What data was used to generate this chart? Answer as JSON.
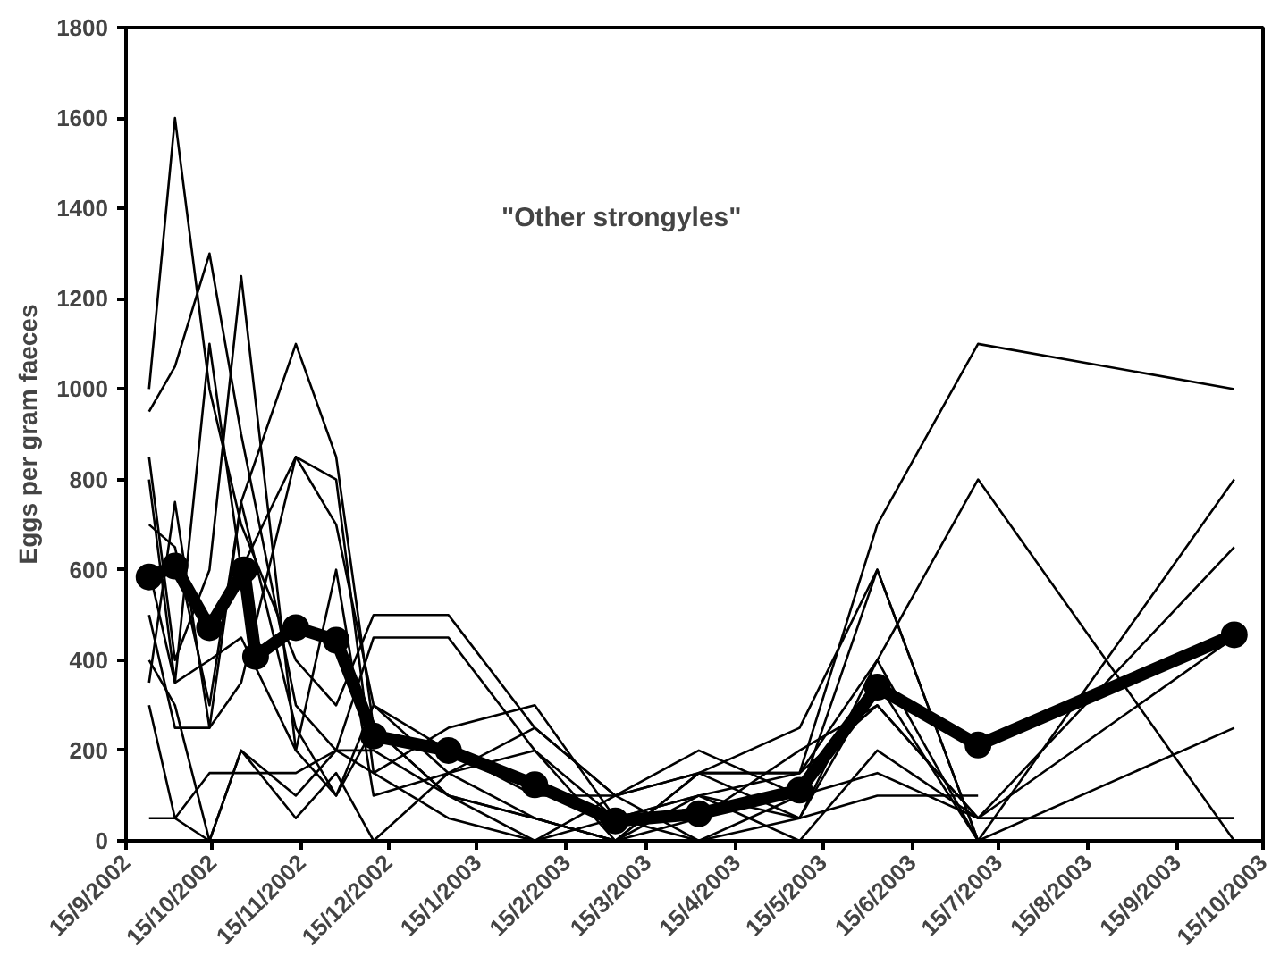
{
  "chart_data": {
    "type": "line",
    "ylabel": "Eggs per gram faeces",
    "annotations": [
      "\"Other strongyles\""
    ],
    "x": [
      "2002-09-23",
      "2002-10-02",
      "2002-10-14",
      "2002-10-25",
      "2002-11-13",
      "2002-11-27",
      "2002-12-10",
      "2003-01-05",
      "2003-02-04",
      "2003-03-04",
      "2003-04-02",
      "2003-05-07",
      "2003-06-03",
      "2003-07-08",
      "2003-10-05"
    ],
    "series": [
      {
        "color": "#000000",
        "values": [
          1000,
          1600,
          1000,
          700,
          400,
          300,
          500,
          500,
          250,
          100,
          200,
          100,
          600,
          0,
          null
        ]
      },
      {
        "color": "#000000",
        "values": [
          950,
          1050,
          1300,
          900,
          300,
          200,
          450,
          450,
          200,
          50,
          100,
          150,
          700,
          1100,
          1000
        ]
      },
      {
        "color": "#000000",
        "values": [
          850,
          400,
          600,
          1250,
          200,
          100,
          300,
          200,
          100,
          100,
          150,
          150,
          400,
          800,
          0
        ]
      },
      {
        "color": "#000000",
        "values": [
          800,
          350,
          1100,
          600,
          850,
          700,
          300,
          150,
          200,
          0,
          100,
          50,
          350,
          0,
          800
        ]
      },
      {
        "color": "#000000",
        "values": [
          700,
          650,
          300,
          750,
          1100,
          850,
          250,
          100,
          50,
          0,
          50,
          200,
          300,
          50,
          650
        ]
      },
      {
        "color": "#000000",
        "values": [
          500,
          250,
          250,
          350,
          850,
          800,
          150,
          250,
          300,
          50,
          0,
          100,
          150,
          50,
          450
        ]
      },
      {
        "color": "#000000",
        "values": [
          600,
          350,
          400,
          450,
          200,
          600,
          100,
          150,
          50,
          0,
          150,
          250,
          600,
          0,
          250
        ]
      },
      {
        "color": "#000000",
        "values": [
          400,
          300,
          0,
          200,
          100,
          200,
          200,
          100,
          0,
          50,
          100,
          0,
          200,
          50,
          50
        ]
      },
      {
        "color": "#000000",
        "values": [
          300,
          50,
          150,
          150,
          150,
          200,
          150,
          50,
          0,
          100,
          0,
          50,
          100,
          100,
          null
        ]
      },
      {
        "color": "#000000",
        "values": [
          50,
          50,
          0,
          200,
          50,
          150,
          0,
          150,
          250,
          100,
          150,
          50,
          400,
          0,
          0
        ]
      },
      {
        "color": "#000000",
        "values": [
          350,
          750,
          250,
          750,
          250,
          100,
          250,
          100,
          50,
          0,
          150,
          150,
          300,
          50,
          50
        ]
      },
      {
        "color": "#000000",
        "marker": "circle",
        "x": [
          "2002-09-23",
          "2002-10-02",
          "2002-10-14",
          "2002-10-26",
          "2002-10-30",
          "2002-11-13",
          "2002-11-27",
          "2002-12-10",
          "2003-01-05",
          "2003-02-04",
          "2003-03-04",
          "2003-04-02",
          "2003-05-07",
          "2003-06-03",
          "2003-07-08",
          "2003-10-05"
        ],
        "values": [
          584,
          608,
          472,
          600,
          408,
          472,
          444,
          232,
          200,
          124,
          44,
          60,
          112,
          340,
          212,
          456
        ]
      }
    ],
    "xlim": [
      "2002-09-15",
      "2003-10-15"
    ],
    "xticks": [
      {
        "value": "2002-09-15",
        "label": "15/9/2002"
      },
      {
        "value": "2002-10-15",
        "label": "15/10/2002"
      },
      {
        "value": "2002-11-15",
        "label": "15/11/2002"
      },
      {
        "value": "2002-12-15",
        "label": "15/12/2002"
      },
      {
        "value": "2003-01-15",
        "label": "15/1/2003"
      },
      {
        "value": "2003-02-15",
        "label": "15/2/2003"
      },
      {
        "value": "2003-03-15",
        "label": "15/3/2003"
      },
      {
        "value": "2003-04-15",
        "label": "15/4/2003"
      },
      {
        "value": "2003-05-15",
        "label": "15/5/2003"
      },
      {
        "value": "2003-06-15",
        "label": "15/6/2003"
      },
      {
        "value": "2003-07-15",
        "label": "15/7/2003"
      },
      {
        "value": "2003-08-15",
        "label": "15/8/2003"
      },
      {
        "value": "2003-09-15",
        "label": "15/9/2003"
      },
      {
        "value": "2003-10-15",
        "label": "15/10/2003"
      }
    ],
    "ylim": [
      0,
      1800
    ],
    "yticks": [
      0,
      200,
      400,
      600,
      800,
      1000,
      1200,
      1400,
      1600,
      1800
    ],
    "grid": false
  }
}
